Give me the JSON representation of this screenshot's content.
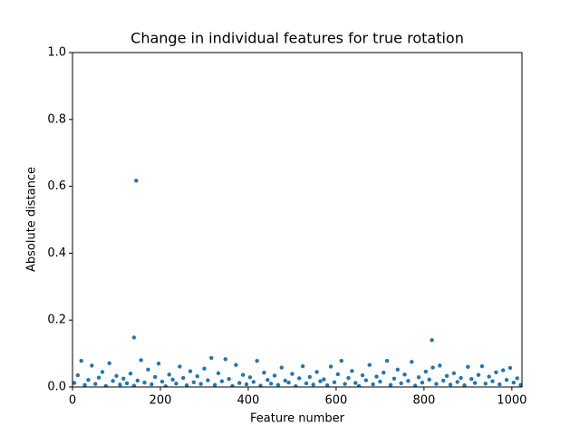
{
  "chart_data": {
    "type": "scatter",
    "title": "Change in individual features for true rotation",
    "x_label": "Feature number",
    "y_label": "Absolute distance",
    "series": [
      {
        "color": "#1f77b4",
        "x": [
          4,
          12,
          20,
          28,
          36,
          44,
          52,
          60,
          68,
          76,
          84,
          92,
          100,
          108,
          116,
          124,
          132,
          140,
          148,
          156,
          164,
          172,
          180,
          188,
          196,
          204,
          212,
          220,
          228,
          236,
          244,
          252,
          260,
          268,
          276,
          284,
          292,
          300,
          308,
          316,
          324,
          332,
          340,
          348,
          356,
          364,
          372,
          380,
          388,
          396,
          404,
          412,
          420,
          428,
          436,
          444,
          452,
          460,
          468,
          476,
          484,
          492,
          500,
          508,
          516,
          524,
          532,
          540,
          548,
          556,
          564,
          572,
          580,
          588,
          596,
          604,
          612,
          620,
          628,
          636,
          644,
          652,
          660,
          668,
          676,
          684,
          692,
          700,
          708,
          716,
          724,
          732,
          740,
          748,
          756,
          764,
          772,
          780,
          788,
          796,
          804,
          812,
          820,
          828,
          836,
          844,
          852,
          860,
          868,
          876,
          884,
          892,
          900,
          908,
          916,
          924,
          932,
          940,
          948,
          956,
          964,
          972,
          980,
          988,
          996,
          1004,
          1012,
          1020,
          140,
          145,
          818
        ],
        "values": [
          0.012,
          0.035,
          0.078,
          0.006,
          0.021,
          0.064,
          0.009,
          0.028,
          0.045,
          0.003,
          0.071,
          0.018,
          0.033,
          0.007,
          0.025,
          0.011,
          0.04,
          0.004,
          0.019,
          0.08,
          0.013,
          0.052,
          0.008,
          0.03,
          0.07,
          0.016,
          0.002,
          0.037,
          0.022,
          0.01,
          0.061,
          0.027,
          0.005,
          0.047,
          0.014,
          0.032,
          0.009,
          0.055,
          0.02,
          0.087,
          0.006,
          0.041,
          0.017,
          0.083,
          0.024,
          0.003,
          0.066,
          0.012,
          0.036,
          0.008,
          0.029,
          0.015,
          0.078,
          0.004,
          0.043,
          0.021,
          0.01,
          0.034,
          0.006,
          0.058,
          0.019,
          0.013,
          0.039,
          0.002,
          0.026,
          0.062,
          0.011,
          0.03,
          0.007,
          0.045,
          0.017,
          0.023,
          0.005,
          0.061,
          0.014,
          0.038,
          0.078,
          0.009,
          0.027,
          0.048,
          0.012,
          0.003,
          0.035,
          0.02,
          0.066,
          0.008,
          0.031,
          0.016,
          0.043,
          0.078,
          0.006,
          0.025,
          0.052,
          0.011,
          0.037,
          0.018,
          0.075,
          0.004,
          0.029,
          0.013,
          0.046,
          0.022,
          0.058,
          0.009,
          0.064,
          0.019,
          0.033,
          0.007,
          0.041,
          0.015,
          0.027,
          0.005,
          0.06,
          0.024,
          0.012,
          0.036,
          0.062,
          0.01,
          0.031,
          0.017,
          0.044,
          0.008,
          0.05,
          0.021,
          0.057,
          0.013,
          0.026,
          0.006,
          0.148,
          0.617,
          0.14
        ]
      }
    ],
    "xlim": [
      0,
      1023
    ],
    "ylim": [
      0,
      1
    ],
    "xticks": [
      0,
      200,
      400,
      600,
      800,
      1000
    ],
    "yticks": [
      {
        "value": 0,
        "label": "0.0"
      },
      0.2,
      0.4,
      0.6,
      0.8,
      {
        "value": 1,
        "label": "1.0"
      }
    ]
  }
}
